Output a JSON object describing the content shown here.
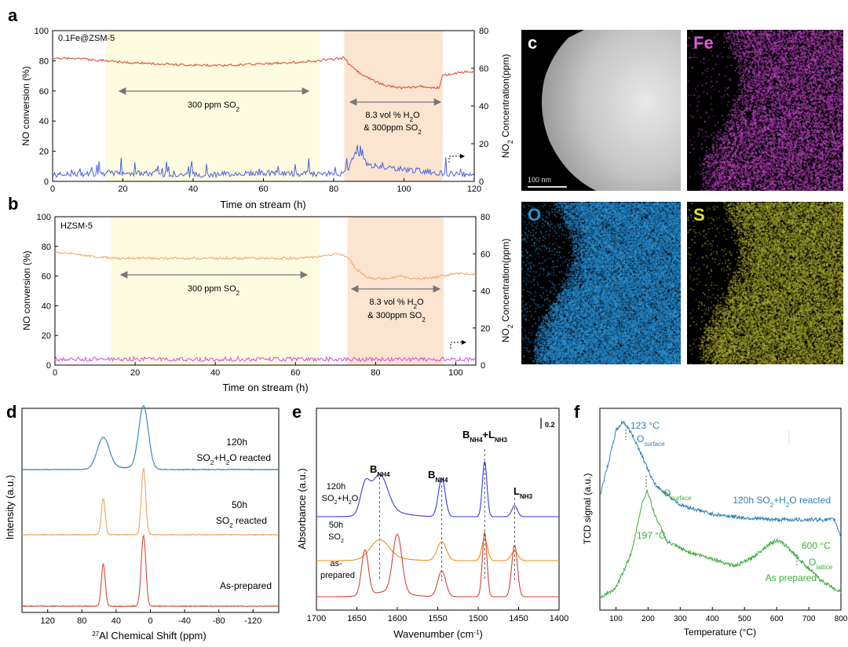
{
  "panels": {
    "a": {
      "label": "a",
      "title": "0.1Fe@ZSM-5",
      "xlabel": "Time on stream (h)",
      "ylabel_left": "NO conversion (%)",
      "ylabel_right_pre": "NO",
      "ylabel_right_sub": "2",
      "ylabel_right_post": " Concentration(ppm)",
      "region1_text": "300 ppm SO",
      "region1_sub": "2",
      "region2_line1_pre": "8.3 vol % H",
      "region2_line1_sub": "2",
      "region2_line1_post": "O",
      "region2_line2_pre": "& 300ppm SO",
      "region2_line2_sub": "2"
    },
    "b": {
      "label": "b",
      "title": "HZSM-5",
      "xlabel": "Time on stream (h)",
      "ylabel_left": "NO conversion (%)",
      "ylabel_right_pre": "NO",
      "ylabel_right_sub": "2",
      "ylabel_right_post": " Concentration(ppm)",
      "region1_text": "300 ppm SO",
      "region1_sub": "2",
      "region2_line1_pre": "8.3 vol % H",
      "region2_line1_sub": "2",
      "region2_line1_post": "O",
      "region2_line2_pre": "& 300ppm SO",
      "region2_line2_sub": "2"
    },
    "c": {
      "label": "c",
      "scale_text": "100 nm",
      "fe": "Fe",
      "o": "O",
      "s": "S"
    },
    "d": {
      "label": "d",
      "xlabel_sup": "27",
      "xlabel_rest": "Al Chemical Shift (ppm)",
      "ylabel": "Intensity (a.u.)",
      "t1a": "120h",
      "t1b_pre": "SO",
      "t1b_sub": "2",
      "t1b_post": "+H",
      "t1b_sub2": "2",
      "t1b_end": "O reacted",
      "t2a": "50h",
      "t2b_pre": "SO",
      "t2b_sub": "2",
      "t2b_post": " reacted",
      "t3": "As-prepared"
    },
    "e": {
      "label": "e",
      "xlabel": "Wavenumber (cm",
      "xlabel_sup": "-1",
      "xlabel_end": ")",
      "ylabel": "Absorbance (a.u.)",
      "scale": "0.2",
      "s1a": "120h",
      "s1b_pre": "SO",
      "s1b_sub": "2",
      "s1b_post": "+H",
      "s1b_sub2": "2",
      "s1b_end": "O",
      "s2a": "50h",
      "s2b_pre": "SO",
      "s2b_sub": "2",
      "s3a": "as-",
      "s3b": "prepared",
      "b1": "B",
      "b1sub": "NH4",
      "b2": "B",
      "b2sub": "NH4",
      "b3": "B",
      "b3sub": "NH4",
      "b3plus": "+L",
      "b3sub2": "NH3",
      "l1": "L",
      "l1sub": "NH3"
    },
    "f": {
      "label": "f",
      "xlabel": "Temperature (°C)",
      "ylabel": "TCD signal (a.u.)",
      "p1": "123 °C",
      "p1o": "O",
      "p1sub": "surface",
      "p2": "197 °C",
      "p2o": "O",
      "p2sub": "surface",
      "p3": "600 °C",
      "p3o": "O",
      "p3sub": "lattice",
      "lab1": "120h SO",
      "lab1sub": "2",
      "lab1post": "+H",
      "lab1sub2": "2",
      "lab1end": "O reacted",
      "lab2": "As prepared"
    }
  },
  "colors": {
    "red": "#d94a36",
    "blue": "#4b62e0",
    "orange": "#f2a25c",
    "magenta": "#d54fd9",
    "green": "#3dad3a",
    "steel": "#2f7fb8",
    "yellow_region": "#fdfbe0",
    "orange_region": "#fbe4d0",
    "e_blue": "#3a3ae0",
    "e_orange": "#f08c1c",
    "e_red": "#d4453a"
  },
  "chart_data": [
    {
      "type": "line",
      "panel": "a",
      "xlim": [
        0,
        120
      ],
      "ylim": [
        0,
        100
      ],
      "y2lim": [
        0,
        80
      ],
      "x_ticks": [
        0,
        20,
        40,
        60,
        80,
        100,
        120
      ],
      "y_ticks": [
        0,
        20,
        40,
        60,
        80,
        100
      ],
      "y2_ticks": [
        0,
        20,
        40,
        60,
        80
      ],
      "regions": [
        {
          "from": 15,
          "to": 76
        },
        {
          "from": 83,
          "to": 111
        }
      ],
      "series": [
        {
          "axis": "left",
          "x": [
            0,
            10,
            20,
            30,
            40,
            50,
            60,
            70,
            75,
            80,
            83,
            85,
            88,
            92,
            96,
            100,
            105,
            110,
            111,
            115,
            120
          ],
          "values": [
            82,
            81,
            79,
            78,
            77,
            77,
            78,
            79,
            80,
            81,
            82,
            76,
            71,
            66,
            63,
            62,
            63,
            62,
            70,
            72,
            73
          ]
        },
        {
          "axis": "right",
          "x": [
            0,
            20,
            40,
            60,
            80,
            84,
            86,
            90,
            95,
            100,
            105,
            110,
            120
          ],
          "values": [
            2,
            3,
            2,
            3,
            2,
            4,
            14,
            7,
            6,
            5,
            4,
            3,
            2
          ]
        }
      ]
    },
    {
      "type": "line",
      "panel": "b",
      "xlim": [
        0,
        105
      ],
      "ylim": [
        0,
        100
      ],
      "y2lim": [
        0,
        80
      ],
      "x_ticks": [
        0,
        20,
        40,
        60,
        80,
        100
      ],
      "y_ticks": [
        0,
        20,
        40,
        60,
        80,
        100
      ],
      "y2_ticks": [
        0,
        20,
        40,
        60,
        80
      ],
      "regions": [
        {
          "from": 14,
          "to": 66
        },
        {
          "from": 73,
          "to": 97
        }
      ],
      "series": [
        {
          "axis": "left",
          "x": [
            0,
            5,
            10,
            15,
            20,
            30,
            40,
            50,
            60,
            66,
            70,
            73,
            75,
            78,
            82,
            86,
            90,
            94,
            97,
            100,
            105
          ],
          "values": [
            76,
            75,
            73,
            72,
            72,
            72,
            72,
            72,
            72,
            73,
            75,
            73,
            65,
            59,
            58,
            60,
            58,
            59,
            60,
            62,
            61
          ]
        },
        {
          "axis": "right",
          "x": [
            0,
            20,
            40,
            60,
            80,
            100,
            105
          ],
          "values": [
            2,
            2,
            2,
            2,
            2,
            2,
            2
          ]
        }
      ]
    },
    {
      "type": "line",
      "panel": "d",
      "xlim": [
        150,
        -150
      ],
      "x_ticks": [
        120,
        80,
        40,
        0,
        -40,
        -80,
        -120
      ],
      "xlabel": "27Al Chemical Shift (ppm)",
      "ylabel": "Intensity (a.u.)",
      "series": [
        {
          "name": "120h SO2+H2O reacted",
          "peaks": [
            {
              "x": 55,
              "h": 0.5
            },
            {
              "x": 8,
              "h": 1.0
            }
          ]
        },
        {
          "name": "50h SO2 reacted",
          "peaks": [
            {
              "x": 55,
              "h": 0.55
            },
            {
              "x": 8,
              "h": 1.0
            }
          ]
        },
        {
          "name": "As-prepared",
          "peaks": [
            {
              "x": 55,
              "h": 0.6
            },
            {
              "x": 8,
              "h": 1.0
            }
          ]
        }
      ]
    },
    {
      "type": "line",
      "panel": "e",
      "xlim": [
        1700,
        1400
      ],
      "x_ticks": [
        1700,
        1650,
        1600,
        1550,
        1500,
        1450,
        1400
      ],
      "xlabel": "Wavenumber (cm-1)",
      "ylabel": "Absorbance (a.u.)",
      "band_positions": [
        1622,
        1545,
        1492,
        1455
      ],
      "series": [
        {
          "name": "120h SO2+H2O",
          "peaks": [
            {
              "x": 1640,
              "h": 0.5
            },
            {
              "x": 1622,
              "h": 0.7
            },
            {
              "x": 1545,
              "h": 0.7
            },
            {
              "x": 1492,
              "h": 1.0
            },
            {
              "x": 1455,
              "h": 0.2
            }
          ]
        },
        {
          "name": "50h SO2",
          "peaks": [
            {
              "x": 1622,
              "h": 0.6
            },
            {
              "x": 1545,
              "h": 0.6
            },
            {
              "x": 1492,
              "h": 0.7
            },
            {
              "x": 1455,
              "h": 0.3
            }
          ]
        },
        {
          "name": "as-prepared",
          "peaks": [
            {
              "x": 1640,
              "h": 0.7
            },
            {
              "x": 1600,
              "h": 0.9
            },
            {
              "x": 1545,
              "h": 0.4
            },
            {
              "x": 1492,
              "h": 1.0
            },
            {
              "x": 1455,
              "h": 0.8
            }
          ]
        }
      ]
    },
    {
      "type": "line",
      "panel": "f",
      "xlim": [
        50,
        800
      ],
      "x_ticks": [
        100,
        200,
        300,
        400,
        500,
        600,
        700,
        800
      ],
      "xlabel": "Temperature (°C)",
      "ylabel": "TCD signal (a.u.)",
      "series": [
        {
          "name": "120h SO2+H2O reacted",
          "x": [
            50,
            80,
            100,
            123,
            150,
            180,
            220,
            300,
            400,
            500,
            600,
            700,
            780,
            800
          ],
          "values": [
            0.6,
            0.8,
            0.95,
            1.0,
            0.93,
            0.82,
            0.66,
            0.55,
            0.5,
            0.48,
            0.47,
            0.47,
            0.47,
            0.38
          ]
        },
        {
          "name": "As prepared",
          "x": [
            50,
            100,
            150,
            180,
            197,
            220,
            260,
            320,
            400,
            470,
            520,
            570,
            600,
            630,
            680,
            740,
            800
          ],
          "values": [
            0.05,
            0.1,
            0.3,
            0.55,
            0.63,
            0.5,
            0.35,
            0.3,
            0.26,
            0.22,
            0.26,
            0.33,
            0.36,
            0.33,
            0.24,
            0.14,
            0.08
          ]
        }
      ]
    }
  ]
}
